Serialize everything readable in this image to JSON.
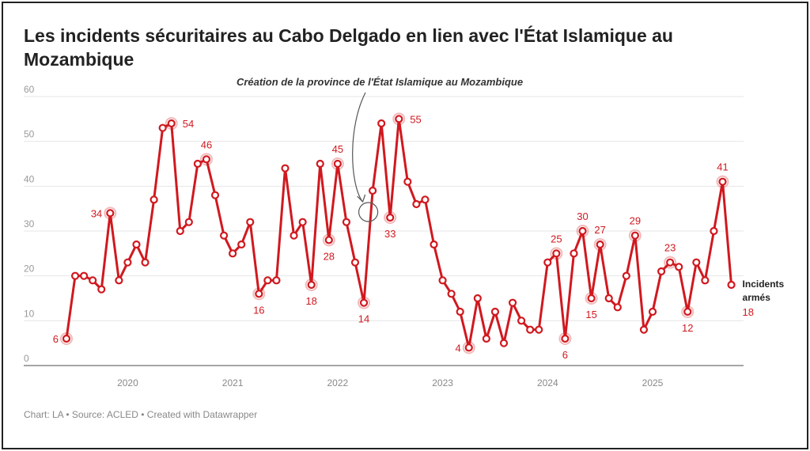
{
  "title": "Les incidents sécuritaires au Cabo Delgado en lien avec l'État Islamique au Mozambique",
  "footer": "Chart: LA • Source: ACLED • Created with Datawrapper",
  "chart_data": {
    "type": "line",
    "title": "Les incidents sécuritaires au Cabo Delgado en lien avec l'État Islamique au Mozambique",
    "start_month": "2019-06",
    "end_month": "2025-10",
    "frequency": "monthly",
    "series": [
      {
        "name": "Incidents armés",
        "color": "#d0191f",
        "values": [
          6,
          20,
          20,
          19,
          17,
          34,
          19,
          23,
          27,
          23,
          37,
          53,
          54,
          30,
          32,
          45,
          46,
          38,
          29,
          25,
          27,
          32,
          16,
          19,
          19,
          44,
          29,
          32,
          18,
          45,
          28,
          45,
          32,
          23,
          14,
          39,
          54,
          33,
          55,
          41,
          36,
          37,
          27,
          19,
          16,
          12,
          4,
          15,
          6,
          12,
          5,
          14,
          10,
          8,
          8,
          23,
          25,
          6,
          25,
          30,
          15,
          27,
          15,
          13,
          20,
          29,
          8,
          12,
          21,
          23,
          22,
          12,
          23,
          19,
          30,
          41,
          18
        ]
      }
    ],
    "labeled_points": [
      {
        "month": "2019-06",
        "value": "6",
        "pos": "left"
      },
      {
        "month": "2019-11",
        "value": "34",
        "pos": "left"
      },
      {
        "month": "2020-06",
        "value": "54",
        "pos": "right"
      },
      {
        "month": "2020-10",
        "value": "46",
        "pos": "above"
      },
      {
        "month": "2021-04",
        "value": "16",
        "pos": "below"
      },
      {
        "month": "2021-10",
        "value": "18",
        "pos": "below"
      },
      {
        "month": "2021-12",
        "value": "28",
        "pos": "below"
      },
      {
        "month": "2022-01",
        "value": "45",
        "pos": "above"
      },
      {
        "month": "2022-04",
        "value": "14",
        "pos": "below"
      },
      {
        "month": "2022-07",
        "value": "33",
        "pos": "below"
      },
      {
        "month": "2022-08",
        "value": "55",
        "pos": "right"
      },
      {
        "month": "2023-04",
        "value": "4",
        "pos": "left"
      },
      {
        "month": "2024-02",
        "value": "25",
        "pos": "above"
      },
      {
        "month": "2024-03",
        "value": "6",
        "pos": "below"
      },
      {
        "month": "2024-05",
        "value": "30",
        "pos": "above"
      },
      {
        "month": "2024-06",
        "value": "15",
        "pos": "below"
      },
      {
        "month": "2024-07",
        "value": "27",
        "pos": "above"
      },
      {
        "month": "2024-11",
        "value": "29",
        "pos": "above"
      },
      {
        "month": "2025-03",
        "value": "23",
        "pos": "above"
      },
      {
        "month": "2025-05",
        "value": "12",
        "pos": "below"
      },
      {
        "month": "2025-09",
        "value": "41",
        "pos": "above"
      }
    ],
    "end_label": {
      "name_line1": "Incidents",
      "name_line2": "armés",
      "value": "18"
    },
    "annotation": {
      "text": "Création de la province de l'État Islamique au Mozambique",
      "month": "2022-05"
    },
    "xlabel": "",
    "ylabel": "",
    "x_ticks": [
      "2020",
      "2021",
      "2022",
      "2023",
      "2024",
      "2025"
    ],
    "y_ticks": [
      "0",
      "10",
      "20",
      "30",
      "40",
      "50",
      "60"
    ],
    "ylim": [
      0,
      60
    ],
    "grid": true,
    "legend": "none"
  }
}
